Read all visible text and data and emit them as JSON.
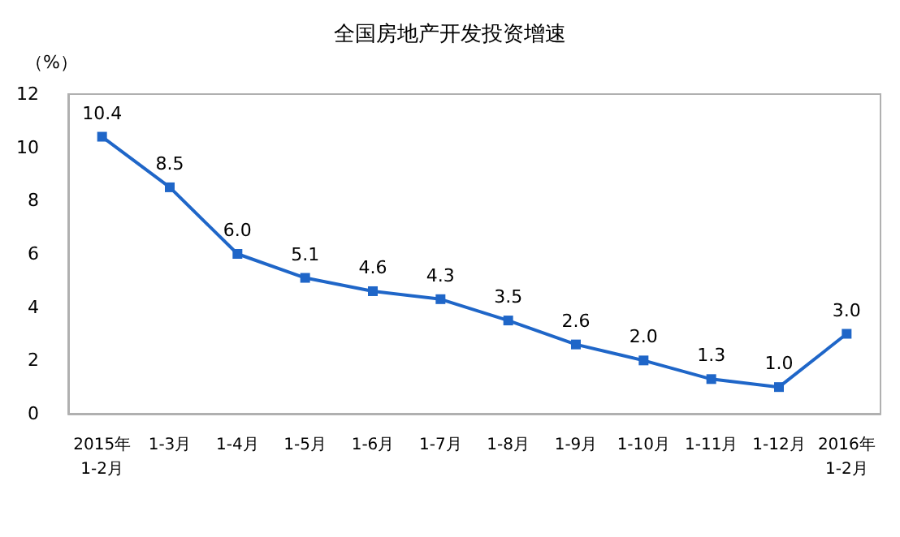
{
  "chart_data": {
    "type": "line",
    "title": "全国房地产开发投资增速",
    "ylabel": "（%）",
    "categories": [
      "2015年\n1-2月",
      "1-3月",
      "1-4月",
      "1-5月",
      "1-6月",
      "1-7月",
      "1-8月",
      "1-9月",
      "1-10月",
      "1-11月",
      "1-12月",
      "2016年\n1-2月"
    ],
    "series": [
      {
        "color": "#1f66c8",
        "values": [
          10.4,
          8.5,
          6.0,
          5.1,
          4.6,
          4.3,
          3.5,
          2.6,
          2.0,
          1.3,
          1.0,
          3.0
        ],
        "value_labels": [
          "10.4",
          "8.5",
          "6.0",
          "5.1",
          "4.6",
          "4.3",
          "3.5",
          "2.6",
          "2.0",
          "1.3",
          "1.0",
          "3.0"
        ]
      }
    ],
    "ylim": [
      0,
      12
    ],
    "yticks": [
      0,
      2,
      4,
      6,
      8,
      10,
      12
    ],
    "grid": false,
    "marker": "square",
    "line_style": "solid"
  }
}
